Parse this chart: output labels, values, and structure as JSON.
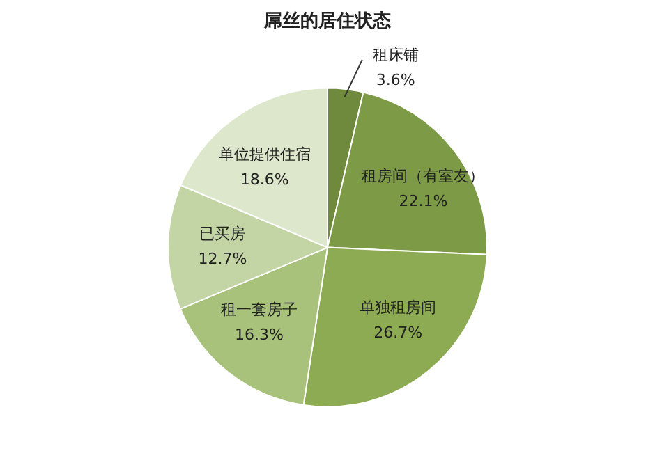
{
  "chart_data": {
    "type": "pie",
    "title": "屌丝的居住状态",
    "categories": [
      "租床铺",
      "租房间（有室友）",
      "单独租房间",
      "租一套房子",
      "已买房",
      "单位提供住宿"
    ],
    "values": [
      3.6,
      22.1,
      26.7,
      16.3,
      12.7,
      18.6
    ],
    "colors": [
      "#6f8a3c",
      "#7d9b47",
      "#8dab52",
      "#a8c27c",
      "#c3d5a4",
      "#dde7cc"
    ],
    "value_labels": [
      "3.6%",
      "22.1%",
      "26.7%",
      "16.3%",
      "12.7%",
      "18.6%"
    ],
    "legend": false
  }
}
